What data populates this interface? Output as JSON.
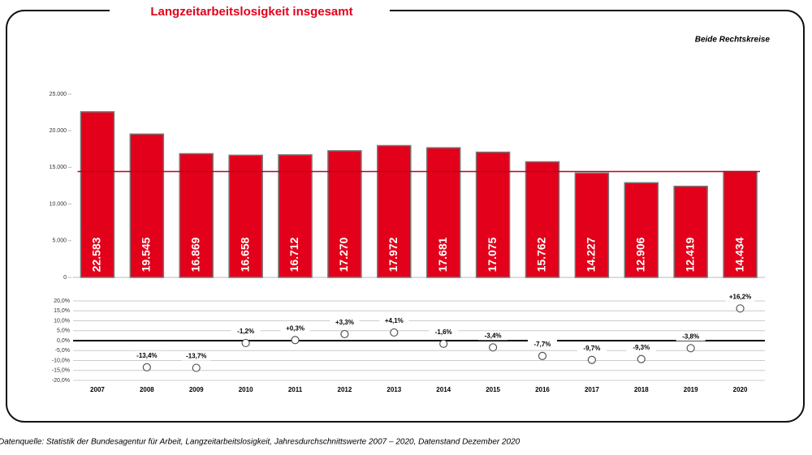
{
  "chart_data": [
    {
      "type": "bar",
      "title": "Langzeitarbeitslosigkeit insgesamt",
      "subtitle": "Beide Rechtskreise",
      "values": [
        22583,
        19545,
        16869,
        16658,
        16712,
        17270,
        17972,
        17681,
        17075,
        15762,
        14227,
        12906,
        12419,
        14434
      ],
      "value_labels": [
        "22.583",
        "19.545",
        "16.869",
        "16.658",
        "16.712",
        "17.270",
        "17.972",
        "17.681",
        "17.075",
        "15.762",
        "14.227",
        "12.906",
        "12.419",
        "14.434"
      ],
      "color": "#e2001a",
      "reference_line": 14434,
      "ylim": [
        0,
        25000
      ],
      "yticks": [
        0,
        {
          "value": 5000,
          "label": "5.000"
        },
        {
          "value": 10000,
          "label": "10.000"
        },
        {
          "value": 15000,
          "label": "15.000"
        },
        {
          "value": 20000,
          "label": "20.000"
        },
        {
          "value": 25000,
          "label": "25.000"
        }
      ]
    },
    {
      "type": "dot",
      "categories": [
        "2007",
        "2008",
        "2009",
        "2010",
        "2011",
        "2012",
        "2013",
        "2014",
        "2015",
        "2016",
        "2017",
        "2018",
        "2019",
        "2020"
      ],
      "values": [
        null,
        -13.4,
        -13.7,
        -1.2,
        0.3,
        3.3,
        4.1,
        -1.6,
        -3.4,
        -7.7,
        -9.7,
        -9.3,
        -3.8,
        16.2
      ],
      "value_labels": [
        null,
        "-13,4%",
        "-13,7%",
        "-1,2%",
        "+0,3%",
        "+3,3%",
        "+4,1%",
        "-1,6%",
        "-3,4%",
        "-7,7%",
        "-9,7%",
        "-9,3%",
        "-3,8%",
        "+16,2%"
      ],
      "ylim": [
        -20,
        20
      ],
      "grid": true,
      "yticks": [
        {
          "value": -20,
          "label": "-20,0%"
        },
        {
          "value": -15,
          "label": "-15,0%"
        },
        {
          "value": -10,
          "label": "-10,0%"
        },
        {
          "value": -5,
          "label": "-5,0%"
        },
        {
          "value": 0,
          "label": "0,0%"
        },
        {
          "value": 5,
          "label": "5,0%"
        },
        {
          "value": 10,
          "label": "10,0%"
        },
        {
          "value": 15,
          "label": "15,0%"
        },
        {
          "value": 20,
          "label": "20,0%"
        }
      ]
    }
  ],
  "source": "Datenquelle: Statistik der Bundesagentur für Arbeit, Langzeitarbeitslosigkeit, Jahresdurchschnittswerte 2007 – 2020, Datenstand Dezember 2020"
}
